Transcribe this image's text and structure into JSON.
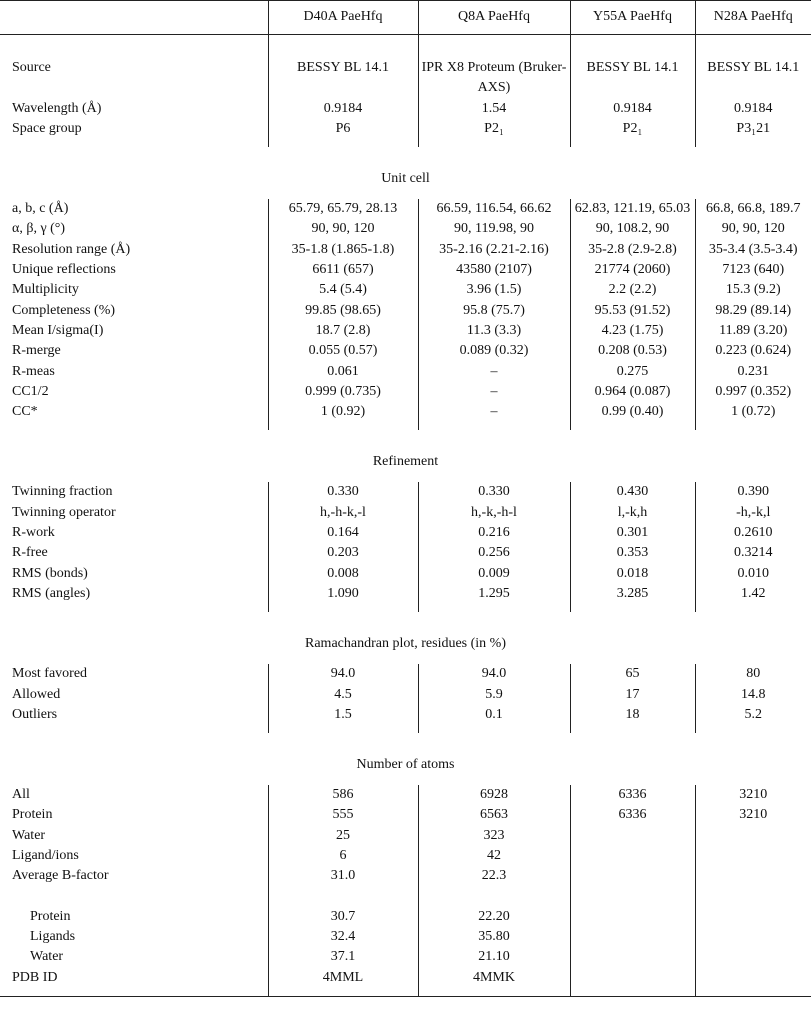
{
  "table": {
    "header": [
      "D40A PaeHfq",
      "Q8A PaeHfq",
      "Y55A PaeHfq",
      "N28A PaeHfq"
    ],
    "sections": [
      {
        "rows": [
          {
            "label": "Source",
            "cells": [
              "BESSY BL 14.1",
              "IPR X8 Proteum (Bruker-AXS)",
              "BESSY BL 14.1",
              "BESSY BL 14.1"
            ]
          },
          {
            "label": "Wavelength (Å)",
            "cells": [
              "0.9184",
              "1.54",
              "0.9184",
              "0.9184"
            ]
          },
          {
            "label": "Space group",
            "cells": [
              "P6",
              "P2₁",
              "P2₁",
              "P3₁21"
            ]
          }
        ]
      },
      {
        "heading": "Unit cell",
        "rows": [
          {
            "label": "a, b, c (Å)",
            "cells": [
              "65.79, 65.79, 28.13",
              "66.59, 116.54, 66.62",
              "62.83, 121.19, 65.03",
              "66.8, 66.8, 189.7"
            ]
          },
          {
            "label": "α, β, γ (°)",
            "cells": [
              "90, 90, 120",
              "90, 119.98, 90",
              "90, 108.2, 90",
              "90, 90, 120"
            ]
          },
          {
            "label": "Resolution range (Å)",
            "cells": [
              "35-1.8 (1.865-1.8)",
              "35-2.16 (2.21-2.16)",
              "35-2.8 (2.9-2.8)",
              "35-3.4 (3.5-3.4)"
            ]
          },
          {
            "label": "Unique reflections",
            "cells": [
              "6611 (657)",
              "43580 (2107)",
              "21774 (2060)",
              "7123 (640)"
            ]
          },
          {
            "label": "Multiplicity",
            "cells": [
              "5.4 (5.4)",
              "3.96 (1.5)",
              "2.2 (2.2)",
              "15.3 (9.2)"
            ]
          },
          {
            "label": "Completeness (%)",
            "cells": [
              "99.85 (98.65)",
              "95.8 (75.7)",
              "95.53 (91.52)",
              "98.29 (89.14)"
            ]
          },
          {
            "label": "Mean I/sigma(I)",
            "cells": [
              "18.7 (2.8)",
              "11.3 (3.3)",
              "4.23 (1.75)",
              "11.89 (3.20)"
            ]
          },
          {
            "label": "R-merge",
            "cells": [
              "0.055 (0.57)",
              "0.089 (0.32)",
              "0.208 (0.53)",
              "0.223 (0.624)"
            ]
          },
          {
            "label": "R-meas",
            "cells": [
              "0.061",
              "–",
              "0.275",
              "0.231"
            ]
          },
          {
            "label": "CC1/2",
            "cells": [
              "0.999 (0.735)",
              "–",
              "0.964 (0.087)",
              "0.997 (0.352)"
            ]
          },
          {
            "label": "CC*",
            "cells": [
              "1 (0.92)",
              "–",
              "0.99 (0.40)",
              "1 (0.72)"
            ]
          }
        ]
      },
      {
        "heading": "Refinement",
        "rows": [
          {
            "label": "Twinning fraction",
            "cells": [
              "0.330",
              "0.330",
              "0.430",
              "0.390"
            ]
          },
          {
            "label": "Twinning operator",
            "cells": [
              "h,-h-k,-l",
              "h,-k,-h-l",
              "l,-k,h",
              "-h,-k,l"
            ]
          },
          {
            "label": "R-work",
            "cells": [
              "0.164",
              "0.216",
              "0.301",
              "0.2610"
            ]
          },
          {
            "label": "R-free",
            "cells": [
              "0.203",
              "0.256",
              "0.353",
              "0.3214"
            ]
          },
          {
            "label": "RMS (bonds)",
            "cells": [
              "0.008",
              "0.009",
              "0.018",
              "0.010"
            ]
          },
          {
            "label": "RMS (angles)",
            "cells": [
              "1.090",
              "1.295",
              "3.285",
              "1.42"
            ]
          }
        ]
      },
      {
        "heading": "Ramachandran plot, residues (in %)",
        "rows": [
          {
            "label": "Most favored",
            "cells": [
              "94.0",
              "94.0",
              "65",
              "80"
            ]
          },
          {
            "label": "Allowed",
            "cells": [
              "4.5",
              "5.9",
              "17",
              "14.8"
            ]
          },
          {
            "label": "Outliers",
            "cells": [
              "1.5",
              "0.1",
              "18",
              "5.2"
            ]
          }
        ]
      },
      {
        "heading": "Number of atoms",
        "rows": [
          {
            "label": "All",
            "cells": [
              "586",
              "6928",
              "6336",
              "3210"
            ]
          },
          {
            "label": "Protein",
            "cells": [
              "555",
              "6563",
              "6336",
              "3210"
            ]
          },
          {
            "label": "Water",
            "cells": [
              "25",
              "323",
              null,
              null
            ]
          },
          {
            "label": "Ligand/ions",
            "cells": [
              "6",
              "42",
              null,
              null
            ]
          },
          {
            "label": "Average B-factor",
            "cells": [
              "31.0",
              "22.3",
              null,
              null
            ],
            "subrows": [
              {
                "label": "Protein",
                "cells": [
                  "30.7",
                  "22.20",
                  null,
                  null
                ]
              },
              {
                "label": "Ligands",
                "cells": [
                  "32.4",
                  "35.80",
                  null,
                  null
                ]
              },
              {
                "label": "Water",
                "cells": [
                  "37.1",
                  "21.10",
                  null,
                  null
                ]
              }
            ]
          },
          {
            "label": "PDB ID",
            "cells": [
              "4MML",
              "4MMK",
              null,
              null
            ]
          }
        ]
      }
    ]
  }
}
